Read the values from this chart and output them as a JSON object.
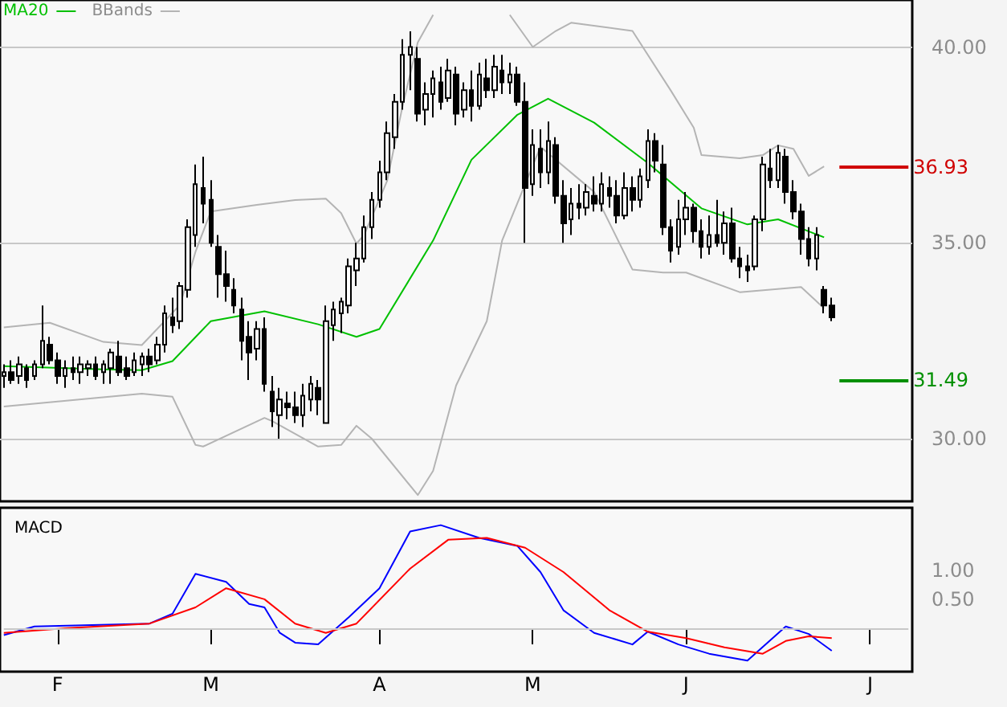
{
  "chart_data": [
    {
      "type": "candlestick",
      "color": "#000000",
      "categories": [
        null,
        null,
        null,
        null,
        null,
        null,
        null,
        null,
        null,
        null,
        null,
        null,
        null,
        null,
        null,
        null,
        null,
        null,
        null,
        null,
        null,
        null,
        null,
        null,
        null,
        null,
        null,
        null,
        null,
        null,
        null,
        null,
        null,
        null,
        null,
        null,
        null,
        null,
        null,
        null,
        null,
        null,
        null,
        null,
        null,
        null,
        null,
        null,
        null,
        null,
        null,
        null,
        null,
        null,
        null,
        null,
        null,
        null,
        null,
        null,
        null,
        null,
        null,
        null,
        null,
        null,
        null,
        null,
        null,
        null,
        null,
        null,
        null,
        null,
        null,
        null,
        null,
        null,
        null,
        null,
        null,
        null,
        null,
        null,
        null,
        null,
        null,
        null,
        null,
        null,
        null,
        null,
        null,
        null,
        null,
        null,
        null,
        null,
        null,
        null,
        null,
        null,
        null,
        null,
        null,
        null,
        null,
        null,
        null,
        null,
        null,
        null,
        null,
        null,
        null,
        null,
        null,
        null,
        null
      ],
      "ohlc": [
        [
          31.6,
          31.9,
          31.3,
          31.7
        ],
        [
          31.7,
          32.0,
          31.4,
          31.5
        ],
        [
          31.6,
          32.1,
          31.4,
          31.9
        ],
        [
          31.8,
          31.9,
          31.3,
          31.5
        ],
        [
          31.6,
          32.0,
          31.5,
          31.9
        ],
        [
          31.9,
          33.4,
          31.8,
          32.5
        ],
        [
          32.4,
          32.6,
          31.9,
          32.0
        ],
        [
          32.0,
          32.2,
          31.4,
          31.6
        ],
        [
          31.6,
          32.0,
          31.3,
          31.8
        ],
        [
          31.8,
          32.1,
          31.5,
          31.7
        ],
        [
          31.7,
          32.1,
          31.4,
          31.9
        ],
        [
          31.8,
          32.0,
          31.6,
          31.9
        ],
        [
          31.9,
          32.1,
          31.5,
          31.6
        ],
        [
          31.7,
          32.0,
          31.4,
          31.9
        ],
        [
          31.8,
          32.3,
          31.4,
          32.2
        ],
        [
          32.1,
          32.5,
          31.6,
          31.7
        ],
        [
          31.8,
          32.1,
          31.5,
          31.6
        ],
        [
          31.7,
          32.2,
          31.6,
          32.0
        ],
        [
          31.9,
          32.2,
          31.6,
          32.1
        ],
        [
          32.1,
          32.3,
          31.7,
          31.9
        ],
        [
          32.0,
          32.6,
          31.9,
          32.4
        ],
        [
          32.4,
          33.4,
          32.2,
          33.2
        ],
        [
          33.1,
          33.6,
          32.7,
          32.9
        ],
        [
          33.0,
          34.0,
          32.8,
          33.9
        ],
        [
          33.8,
          35.6,
          33.6,
          35.4
        ],
        [
          35.2,
          37.0,
          34.9,
          36.5
        ],
        [
          36.4,
          37.2,
          35.5,
          36.0
        ],
        [
          36.1,
          36.6,
          34.9,
          35.0
        ],
        [
          34.9,
          35.2,
          33.6,
          34.2
        ],
        [
          34.2,
          34.8,
          33.5,
          33.9
        ],
        [
          33.8,
          34.1,
          33.2,
          33.4
        ],
        [
          33.3,
          33.6,
          32.0,
          32.5
        ],
        [
          32.6,
          33.0,
          31.5,
          32.2
        ],
        [
          32.3,
          33.0,
          32.0,
          32.8
        ],
        [
          32.8,
          33.1,
          31.2,
          31.4
        ],
        [
          31.2,
          31.6,
          30.3,
          30.7
        ],
        [
          30.6,
          31.3,
          30.0,
          31.0
        ],
        [
          30.9,
          31.2,
          30.5,
          30.8
        ],
        [
          30.8,
          31.2,
          30.4,
          30.6
        ],
        [
          30.6,
          31.4,
          30.3,
          31.1
        ],
        [
          31.0,
          31.6,
          30.7,
          31.4
        ],
        [
          31.3,
          31.5,
          30.6,
          31.0
        ],
        [
          30.4,
          33.4,
          30.4,
          33.0
        ],
        [
          32.9,
          33.5,
          32.5,
          33.3
        ],
        [
          33.2,
          33.6,
          32.7,
          33.5
        ],
        [
          33.4,
          34.6,
          33.2,
          34.4
        ],
        [
          34.3,
          35.0,
          33.9,
          34.6
        ],
        [
          34.6,
          35.7,
          34.5,
          35.4
        ],
        [
          35.4,
          36.3,
          35.1,
          36.1
        ],
        [
          36.1,
          37.1,
          35.9,
          36.8
        ],
        [
          36.8,
          38.1,
          36.6,
          37.8
        ],
        [
          37.7,
          38.8,
          37.4,
          38.6
        ],
        [
          38.6,
          40.2,
          38.4,
          39.8
        ],
        [
          39.8,
          40.4,
          38.9,
          40.0
        ],
        [
          39.7,
          40.0,
          38.1,
          38.3
        ],
        [
          38.4,
          39.1,
          38.0,
          38.8
        ],
        [
          38.8,
          39.4,
          38.2,
          39.2
        ],
        [
          39.1,
          39.5,
          38.4,
          38.6
        ],
        [
          38.7,
          39.7,
          38.6,
          39.4
        ],
        [
          39.3,
          39.5,
          38.0,
          38.3
        ],
        [
          38.4,
          39.1,
          38.2,
          38.9
        ],
        [
          38.9,
          39.4,
          38.1,
          38.5
        ],
        [
          38.5,
          39.6,
          38.4,
          39.3
        ],
        [
          39.2,
          39.7,
          38.7,
          38.9
        ],
        [
          38.9,
          39.8,
          38.7,
          39.5
        ],
        [
          39.4,
          39.8,
          38.8,
          39.1
        ],
        [
          39.1,
          39.6,
          38.8,
          39.3
        ],
        [
          39.3,
          39.5,
          38.5,
          38.6
        ],
        [
          38.6,
          39.1,
          35.0,
          36.4
        ],
        [
          36.5,
          37.9,
          36.2,
          37.5
        ],
        [
          37.4,
          37.9,
          36.4,
          36.8
        ],
        [
          36.8,
          38.1,
          36.5,
          37.6
        ],
        [
          37.5,
          37.7,
          36.0,
          36.2
        ],
        [
          36.2,
          36.6,
          35.0,
          35.5
        ],
        [
          35.6,
          36.4,
          35.2,
          36.0
        ],
        [
          36.0,
          36.5,
          35.6,
          35.9
        ],
        [
          35.9,
          36.5,
          35.7,
          36.3
        ],
        [
          36.2,
          36.7,
          35.8,
          36.0
        ],
        [
          36.0,
          36.8,
          35.8,
          36.5
        ],
        [
          36.4,
          36.7,
          35.9,
          36.2
        ],
        [
          36.2,
          36.6,
          35.5,
          35.7
        ],
        [
          35.7,
          36.8,
          35.6,
          36.4
        ],
        [
          36.4,
          36.7,
          35.8,
          36.1
        ],
        [
          36.1,
          36.9,
          35.9,
          36.7
        ],
        [
          36.6,
          37.9,
          36.4,
          37.6
        ],
        [
          37.6,
          37.8,
          36.8,
          37.1
        ],
        [
          37.0,
          37.5,
          35.2,
          35.4
        ],
        [
          35.4,
          35.6,
          34.5,
          34.8
        ],
        [
          34.9,
          36.1,
          34.7,
          35.6
        ],
        [
          35.6,
          36.3,
          35.2,
          35.9
        ],
        [
          35.9,
          36.0,
          35.0,
          35.3
        ],
        [
          35.3,
          35.6,
          34.6,
          34.9
        ],
        [
          34.9,
          35.7,
          34.7,
          35.2
        ],
        [
          35.2,
          36.1,
          34.9,
          35.0
        ],
        [
          35.0,
          35.8,
          34.7,
          35.5
        ],
        [
          35.5,
          35.9,
          34.5,
          34.6
        ],
        [
          34.6,
          34.9,
          34.1,
          34.4
        ],
        [
          34.4,
          34.7,
          34.0,
          34.3
        ],
        [
          34.4,
          35.7,
          34.3,
          35.6
        ],
        [
          35.6,
          37.2,
          35.3,
          37.0
        ],
        [
          36.9,
          37.4,
          36.4,
          36.6
        ],
        [
          36.6,
          37.5,
          36.4,
          37.3
        ],
        [
          37.2,
          37.4,
          36.0,
          36.3
        ],
        [
          36.3,
          36.6,
          35.6,
          35.8
        ],
        [
          35.8,
          36.0,
          34.7,
          35.1
        ],
        [
          35.1,
          35.4,
          34.4,
          34.6
        ],
        [
          34.6,
          35.4,
          34.3,
          35.2
        ],
        [
          33.8,
          33.9,
          33.2,
          33.4
        ],
        [
          33.4,
          33.6,
          33.0,
          33.1
        ],
        null,
        null,
        null,
        null,
        null,
        null,
        null,
        null,
        null,
        null
      ],
      "series": [
        {
          "type": "line",
          "name": "MA20",
          "color": "#00c000",
          "values": [
            31.85,
            null,
            null,
            null,
            null,
            null,
            null,
            null,
            null,
            null,
            null,
            null,
            null,
            31.77,
            null,
            null,
            null,
            null,
            31.75,
            null,
            null,
            null,
            31.98,
            null,
            null,
            null,
            null,
            33.0,
            null,
            null,
            null,
            null,
            null,
            null,
            33.25,
            null,
            null,
            null,
            null,
            null,
            null,
            32.92,
            null,
            null,
            null,
            null,
            32.6,
            null,
            null,
            32.8,
            null,
            null,
            null,
            null,
            null,
            null,
            35.06,
            null,
            null,
            null,
            null,
            37.12,
            null,
            null,
            null,
            null,
            null,
            38.27,
            null,
            null,
            null,
            38.68,
            null,
            null,
            null,
            null,
            null,
            38.07,
            null,
            null,
            null,
            null,
            null,
            null,
            37.04,
            null,
            null,
            null,
            null,
            null,
            null,
            35.88,
            null,
            null,
            null,
            null,
            null,
            35.47,
            null,
            null,
            null,
            35.6,
            null,
            null,
            null,
            null,
            null,
            35.14,
            null,
            null,
            null,
            null,
            null,
            null,
            null,
            null,
            null,
            null,
            null
          ]
        },
        {
          "type": "line",
          "name": "BBands",
          "color": "#b4b4b4",
          "values": [
            32.84,
            null,
            null,
            null,
            null,
            null,
            32.96,
            null,
            null,
            null,
            null,
            null,
            null,
            32.47,
            null,
            null,
            null,
            null,
            32.39,
            null,
            32.8,
            null,
            null,
            33.42,
            null,
            34.77,
            null,
            35.8,
            null,
            null,
            null,
            null,
            null,
            35.97,
            null,
            null,
            null,
            null,
            36.09,
            null,
            null,
            null,
            36.13,
            null,
            35.76,
            null,
            34.98,
            35.2,
            null,
            null,
            36.58,
            null,
            38.48,
            null,
            40.12,
            null,
            40.82,
            null,
            null,
            null,
            null,
            null,
            null,
            null,
            null,
            null,
            null,
            null,
            null,
            null,
            null,
            null,
            null,
            null,
            null,
            null,
            null,
            null,
            null,
            null,
            null,
            null,
            null,
            null,
            null,
            null,
            null,
            null,
            null,
            null,
            null,
            null,
            null,
            null,
            null,
            null,
            null,
            null,
            null,
            null,
            null,
            null,
            null,
            null,
            null,
            null,
            null,
            null,
            null,
            null,
            null,
            null,
            null,
            null,
            null,
            null,
            null,
            null,
            null
          ]
        },
        {
          "type": "line",
          "color": "#b4b4b4",
          "values": [
            null,
            null,
            null,
            null,
            null,
            null,
            null,
            null,
            null,
            null,
            null,
            null,
            null,
            null,
            null,
            null,
            null,
            null,
            null,
            null,
            null,
            null,
            null,
            null,
            null,
            null,
            null,
            null,
            null,
            null,
            null,
            null,
            null,
            null,
            null,
            null,
            null,
            null,
            null,
            null,
            null,
            null,
            null,
            null,
            null,
            null,
            null,
            null,
            null,
            null,
            null,
            null,
            null,
            null,
            null,
            null,
            null,
            null,
            null,
            null,
            null,
            null,
            null,
            null,
            null,
            null,
            40.82,
            null,
            null,
            40.0,
            null,
            null,
            40.41,
            null,
            40.62,
            null,
            null,
            null,
            null,
            null,
            null,
            null,
            40.41,
            null,
            null,
            null,
            null,
            38.89,
            null,
            null,
            37.94,
            37.24,
            null,
            null,
            null,
            null,
            37.16,
            null,
            null,
            37.24,
            null,
            37.49,
            null,
            37.4,
            null,
            36.71,
            null,
            36.95,
            null,
            null,
            null,
            null,
            null,
            null,
            null,
            null,
            null,
            null,
            null
          ]
        },
        {
          "type": "line",
          "color": "#b4b4b4",
          "values": [
            30.82,
            null,
            null,
            null,
            null,
            null,
            null,
            null,
            null,
            null,
            null,
            null,
            null,
            null,
            null,
            null,
            null,
            null,
            31.15,
            null,
            null,
            null,
            31.07,
            null,
            null,
            29.84,
            29.8,
            null,
            null,
            null,
            null,
            null,
            null,
            null,
            30.53,
            30.45,
            null,
            null,
            null,
            null,
            null,
            29.8,
            null,
            null,
            29.84,
            null,
            30.33,
            null,
            30.0,
            null,
            null,
            null,
            null,
            null,
            28.56,
            null,
            29.18,
            null,
            null,
            31.36,
            null,
            null,
            null,
            33.0,
            null,
            35.06,
            null,
            null,
            null,
            null,
            37.45,
            null,
            null,
            null,
            null,
            null,
            null,
            36.3,
            null,
            null,
            null,
            null,
            34.32,
            null,
            null,
            null,
            34.24,
            null,
            null,
            34.24,
            null,
            null,
            null,
            null,
            null,
            null,
            33.74,
            null,
            null,
            null,
            null,
            null,
            null,
            null,
            33.87,
            null,
            null,
            33.33,
            null,
            null,
            null,
            null,
            null,
            null,
            null,
            null,
            null,
            null,
            null
          ]
        }
      ],
      "ylim": [
        28.4,
        41.2
      ],
      "yticks": [
        {
          "value": 30,
          "label": "30.00"
        },
        {
          "value": 35,
          "label": "35.00"
        },
        {
          "value": 40,
          "label": "40.00"
        }
      ],
      "grid": "y",
      "legend": "top left",
      "marker": "none",
      "ref_lines": [
        {
          "axis": "y",
          "value": 36.93,
          "label": "36.93",
          "color": "#d00000"
        },
        {
          "axis": "y",
          "value": 31.49,
          "label": "31.49",
          "color": "#009000"
        }
      ]
    },
    {
      "type": "line",
      "title": "MACD",
      "categories": [
        null,
        null,
        null,
        null,
        null,
        null,
        null,
        "F",
        null,
        null,
        null,
        null,
        null,
        null,
        null,
        null,
        null,
        null,
        null,
        null,
        null,
        null,
        null,
        null,
        null,
        null,
        null,
        "M",
        null,
        null,
        null,
        null,
        null,
        null,
        null,
        null,
        null,
        null,
        null,
        null,
        null,
        null,
        null,
        null,
        null,
        null,
        null,
        null,
        null,
        "A",
        null,
        null,
        null,
        null,
        null,
        null,
        null,
        null,
        null,
        null,
        null,
        null,
        null,
        null,
        null,
        null,
        null,
        null,
        null,
        "M",
        null,
        null,
        null,
        null,
        null,
        null,
        null,
        null,
        null,
        null,
        null,
        null,
        null,
        null,
        null,
        null,
        null,
        null,
        null,
        "J",
        null,
        null,
        null,
        null,
        null,
        null,
        null,
        null,
        null,
        null,
        null,
        null,
        null,
        null,
        null,
        null,
        null,
        null,
        null,
        null,
        null,
        null,
        null,
        "J",
        null,
        null,
        null,
        null,
        null
      ],
      "series": [
        {
          "color": "#0000ff",
          "values": [
            -0.12,
            null,
            null,
            null,
            0.03,
            null,
            null,
            null,
            null,
            null,
            null,
            null,
            null,
            null,
            null,
            null,
            null,
            null,
            null,
            0.08,
            null,
            null,
            0.25,
            null,
            null,
            0.94,
            null,
            null,
            null,
            0.8,
            null,
            null,
            0.42,
            null,
            0.36,
            null,
            -0.08,
            null,
            -0.25,
            null,
            null,
            -0.28,
            null,
            null,
            null,
            0.19,
            null,
            null,
            null,
            0.69,
            null,
            null,
            null,
            1.67,
            null,
            null,
            null,
            1.78,
            null,
            null,
            null,
            null,
            1.56,
            null,
            null,
            null,
            null,
            1.42,
            null,
            null,
            0.97,
            null,
            null,
            0.31,
            null,
            null,
            null,
            -0.08,
            null,
            null,
            null,
            null,
            -0.28,
            null,
            -0.06,
            null,
            null,
            null,
            -0.28,
            null,
            null,
            null,
            -0.44,
            null,
            null,
            null,
            null,
            -0.56,
            null,
            null,
            null,
            null,
            0.03,
            null,
            null,
            -0.1,
            null,
            null,
            -0.39,
            null,
            null,
            null,
            null,
            null,
            null,
            null,
            null,
            null,
            null
          ]
        },
        {
          "color": "#ff0000",
          "values": [
            -0.08,
            null,
            null,
            null,
            null,
            null,
            null,
            null,
            0,
            null,
            null,
            null,
            null,
            null,
            null,
            null,
            null,
            null,
            null,
            0.08,
            null,
            null,
            null,
            null,
            null,
            0.36,
            null,
            null,
            null,
            0.69,
            null,
            null,
            null,
            null,
            0.5,
            null,
            null,
            null,
            0.08,
            null,
            null,
            null,
            -0.08,
            null,
            null,
            null,
            0.08,
            null,
            null,
            null,
            null,
            null,
            null,
            1.03,
            null,
            null,
            null,
            null,
            1.53,
            null,
            null,
            null,
            null,
            1.56,
            null,
            null,
            null,
            null,
            1.39,
            null,
            null,
            null,
            null,
            0.97,
            null,
            null,
            null,
            null,
            null,
            0.31,
            null,
            null,
            null,
            null,
            -0.06,
            null,
            null,
            null,
            null,
            -0.17,
            null,
            null,
            null,
            null,
            -0.33,
            null,
            null,
            null,
            null,
            -0.44,
            null,
            null,
            -0.22,
            null,
            null,
            -0.14,
            null,
            null,
            -0.17,
            null,
            null,
            null,
            null,
            null,
            null,
            null,
            null,
            null,
            null
          ]
        }
      ],
      "ylim": [
        -0.75,
        2.08
      ],
      "yticks": [
        {
          "value": 0.5,
          "label": "0.50"
        },
        {
          "value": 1,
          "label": "1.00"
        }
      ],
      "marker": "none",
      "ref_lines": [
        {
          "axis": "y",
          "value": 0,
          "color": "#c8c8c8"
        }
      ]
    }
  ]
}
